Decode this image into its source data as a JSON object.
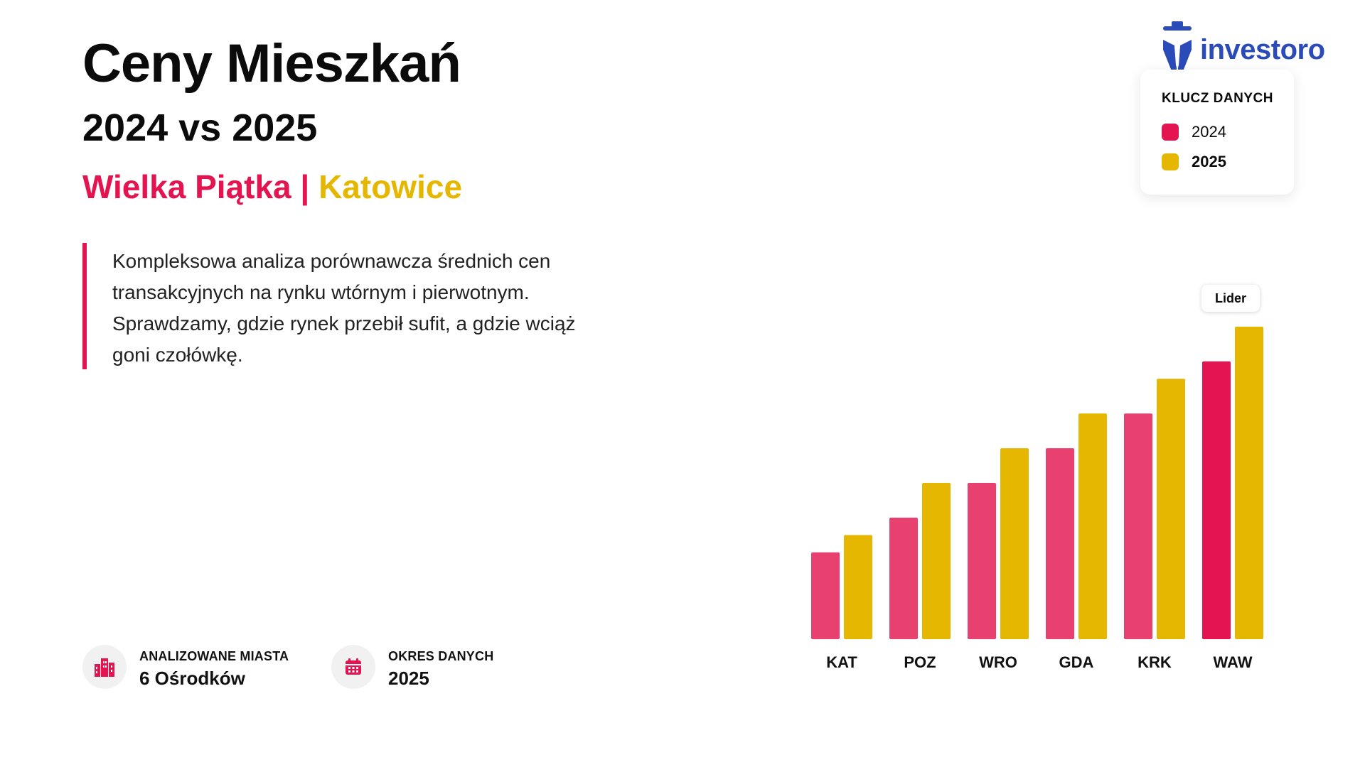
{
  "header": {
    "title": "Ceny Mieszkań",
    "subtitle": "2024 vs 2025",
    "tagline_a": "Wielka Piątka",
    "tagline_sep": " | ",
    "tagline_b": "Katowice"
  },
  "description": "Kompleksowa analiza porównawcza średnich cen transakcyjnych na rynku wtórnym i pierwotnym. Sprawdzamy, gdzie rynek przebił sufit, a gdzie wciąż goni czołówkę.",
  "stats": [
    {
      "label": "ANALIZOWANE MIASTA",
      "value": "6 Ośrodków",
      "icon": "city-icon"
    },
    {
      "label": "OKRES DANYCH",
      "value": "2025",
      "icon": "calendar-icon"
    }
  ],
  "logo": {
    "text": "investoro",
    "icon": "detective-hat-icon"
  },
  "legend": {
    "title": "KLUCZ DANYCH",
    "items": [
      {
        "label": "2024",
        "color": "#e3144f"
      },
      {
        "label": "2025",
        "color": "#e5b700"
      }
    ]
  },
  "colors": {
    "accent_red": "#e3144f",
    "accent_yellow": "#e5b700",
    "bar_2024": "#e8406f",
    "bar_2024_leader": "#e3144f"
  },
  "chart_data": {
    "type": "bar",
    "categories": [
      "KAT",
      "POZ",
      "WRO",
      "GDA",
      "KRK",
      "WAW"
    ],
    "series": [
      {
        "name": "2024",
        "values": [
          2.5,
          3.5,
          4.5,
          5.5,
          6.5,
          8.0
        ]
      },
      {
        "name": "2025",
        "values": [
          3.0,
          4.5,
          5.5,
          6.5,
          7.5,
          9.0
        ]
      }
    ],
    "ylim": [
      0,
      9
    ],
    "annotation": {
      "text": "Lider",
      "category": "WAW"
    },
    "title": "",
    "xlabel": "",
    "ylabel": "",
    "grid": false,
    "legend": "top-right"
  }
}
